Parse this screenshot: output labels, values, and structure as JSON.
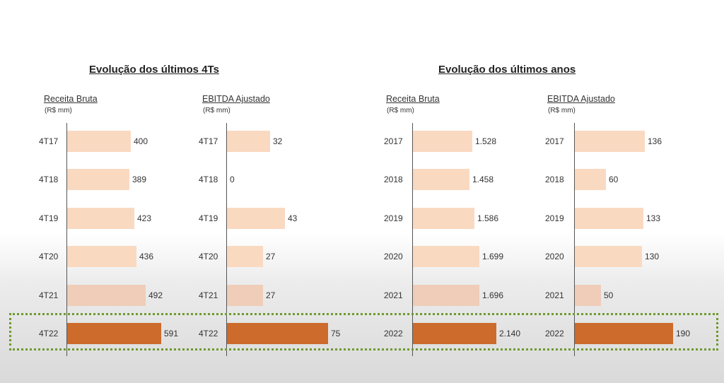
{
  "sections": [
    {
      "title": "Evolução dos últimos 4Ts"
    },
    {
      "title": "Evolução dos últimos anos"
    }
  ],
  "chart_data": [
    {
      "type": "bar",
      "orientation": "horizontal",
      "title": "Receita Bruta",
      "unit": "(R$ mm)",
      "categories": [
        "4T17",
        "4T18",
        "4T19",
        "4T20",
        "4T21",
        "4T22"
      ],
      "values": [
        400,
        389,
        423,
        436,
        492,
        591
      ],
      "value_labels": [
        "400",
        "389",
        "423",
        "436",
        "492",
        "591"
      ]
    },
    {
      "type": "bar",
      "orientation": "horizontal",
      "title": "EBITDA Ajustado",
      "unit": "(R$ mm)",
      "categories": [
        "4T17",
        "4T18",
        "4T19",
        "4T20",
        "4T21",
        "4T22"
      ],
      "values": [
        32,
        0,
        43,
        27,
        27,
        75
      ],
      "value_labels": [
        "32",
        "0",
        "43",
        "27",
        "27",
        "75"
      ]
    },
    {
      "type": "bar",
      "orientation": "horizontal",
      "title": "Receita Bruta",
      "unit": "(R$ mm)",
      "categories": [
        "2017",
        "2018",
        "2019",
        "2020",
        "2021",
        "2022"
      ],
      "values": [
        1528,
        1458,
        1586,
        1699,
        1696,
        2140
      ],
      "value_labels": [
        "1.528",
        "1.458",
        "1.586",
        "1.699",
        "1.696",
        "2.140"
      ]
    },
    {
      "type": "bar",
      "orientation": "horizontal",
      "title": "EBITDA Ajustado",
      "unit": "(R$ mm)",
      "categories": [
        "2017",
        "2018",
        "2019",
        "2020",
        "2021",
        "2022"
      ],
      "values": [
        136,
        60,
        133,
        130,
        50,
        190
      ],
      "value_labels": [
        "136",
        "60",
        "133",
        "130",
        "50",
        "190"
      ]
    }
  ],
  "colors": {
    "bar_light": "#fad9c1",
    "bar_mid": "#efcdb8",
    "bar_highlight": "#cc6b2c",
    "highlight_border": "#6e9a2e"
  }
}
